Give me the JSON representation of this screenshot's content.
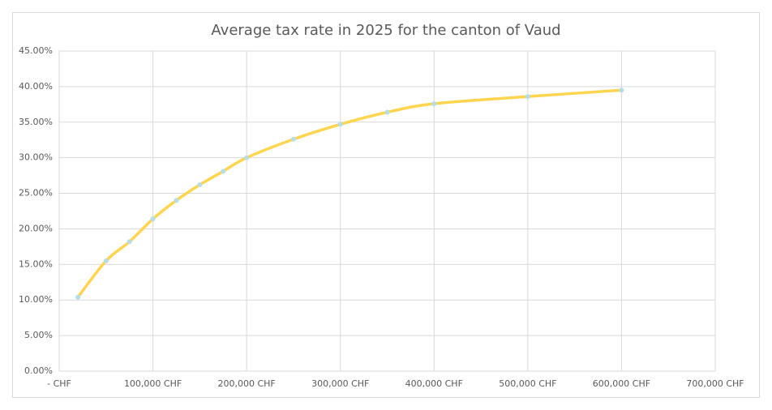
{
  "chart_data": {
    "type": "line",
    "title": "Average tax rate in 2025 for the canton of Vaud",
    "x": [
      20000,
      50000,
      75000,
      100000,
      125000,
      150000,
      175000,
      200000,
      250000,
      300000,
      350000,
      400000,
      500000,
      600000
    ],
    "series": [
      {
        "name": "Average tax rate",
        "color": "#ffd54f",
        "marker_color": "#b4dde6",
        "values": [
          10.4,
          15.5,
          18.2,
          21.4,
          24.0,
          26.2,
          28.1,
          30.0,
          32.6,
          34.7,
          36.4,
          37.6,
          38.6,
          39.5
        ]
      }
    ],
    "xlim": [
      0,
      700000
    ],
    "xticks": [
      {
        "value": 0,
        "label": "-   CHF"
      },
      {
        "value": 100000,
        "label": "100,000 CHF"
      },
      {
        "value": 200000,
        "label": "200,000 CHF"
      },
      {
        "value": 300000,
        "label": "300,000 CHF"
      },
      {
        "value": 400000,
        "label": "400,000 CHF"
      },
      {
        "value": 500000,
        "label": "500,000 CHF"
      },
      {
        "value": 600000,
        "label": "600,000 CHF"
      },
      {
        "value": 700000,
        "label": "700,000 CHF"
      }
    ],
    "ylim": [
      0,
      45
    ],
    "yticks": [
      {
        "value": 0,
        "label": "0.00%"
      },
      {
        "value": 5,
        "label": "5.00%"
      },
      {
        "value": 10,
        "label": "10.00%"
      },
      {
        "value": 15,
        "label": "15.00%"
      },
      {
        "value": 20,
        "label": "20.00%"
      },
      {
        "value": 25,
        "label": "25.00%"
      },
      {
        "value": 30,
        "label": "30.00%"
      },
      {
        "value": 35,
        "label": "35.00%"
      },
      {
        "value": 40,
        "label": "40.00%"
      },
      {
        "value": 45,
        "label": "45.00%"
      }
    ],
    "grid": true
  }
}
